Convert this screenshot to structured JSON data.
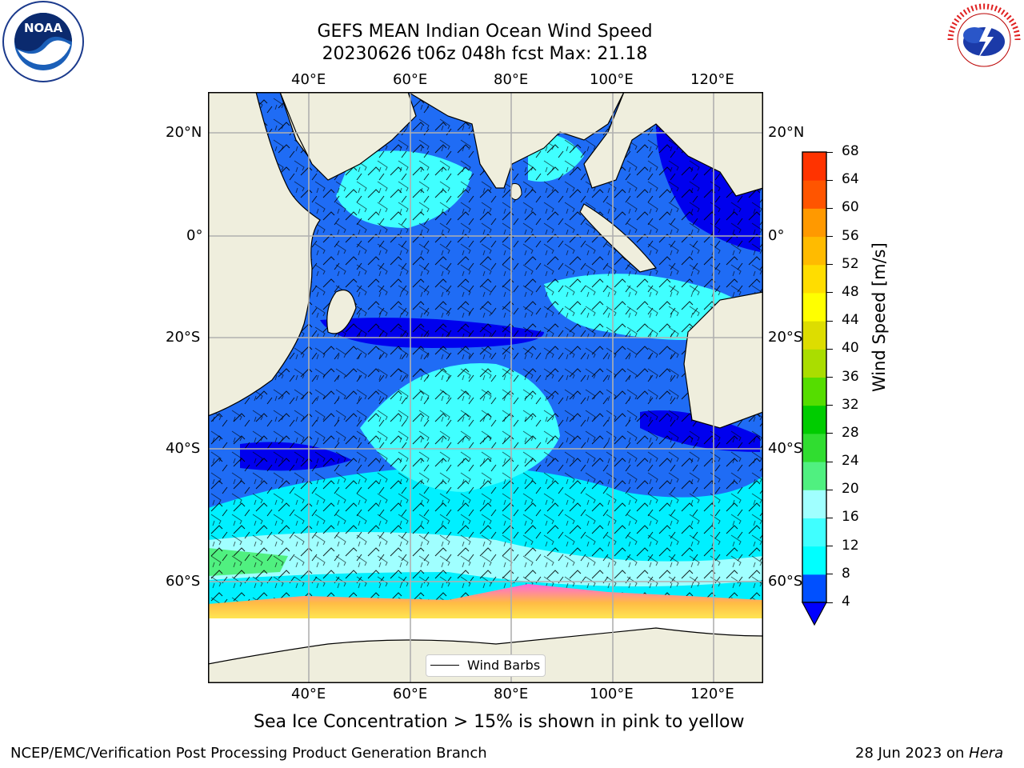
{
  "title": {
    "line1": "GEFS MEAN Indian Ocean Wind Speed",
    "line2": "20230626 t06z 048h fcst   Max: 21.18"
  },
  "map": {
    "lon_labels": [
      "40°E",
      "60°E",
      "80°E",
      "100°E",
      "120°E"
    ],
    "lat_labels": [
      "20°N",
      "0°",
      "20°S",
      "40°S",
      "60°S"
    ],
    "legend_label": "Wind Barbs",
    "colors": {
      "land": "#efeedd",
      "ice": "#ffffff",
      "gridline": "#b0b0b0"
    }
  },
  "colorbar": {
    "label": "Wind Speed [m/s]",
    "ticks": [
      "4",
      "8",
      "12",
      "16",
      "20",
      "24",
      "28",
      "32",
      "36",
      "40",
      "44",
      "48",
      "52",
      "56",
      "60",
      "64",
      "68"
    ],
    "colors": [
      "#0050ff",
      "#00ffff",
      "#40ffff",
      "#a0ffff",
      "#50f080",
      "#30dd30",
      "#00cc00",
      "#55dd00",
      "#aadd00",
      "#dddd00",
      "#ffff00",
      "#ffdd00",
      "#ffbb00",
      "#ff9900",
      "#ff5500",
      "#ff3300",
      "#ff0000"
    ],
    "under_color": "#0000ff"
  },
  "logos": {
    "noaa_text": "NOAA",
    "nws_text": "NATIONAL WEATHER SERVICE"
  },
  "caption": "Sea Ice Concentration > 15% is shown in pink to yellow",
  "footer": {
    "left": "NCEP/EMC/Verification Post Processing Product Generation Branch",
    "date": "28 Jun 2023 on ",
    "machine": "Hera"
  }
}
